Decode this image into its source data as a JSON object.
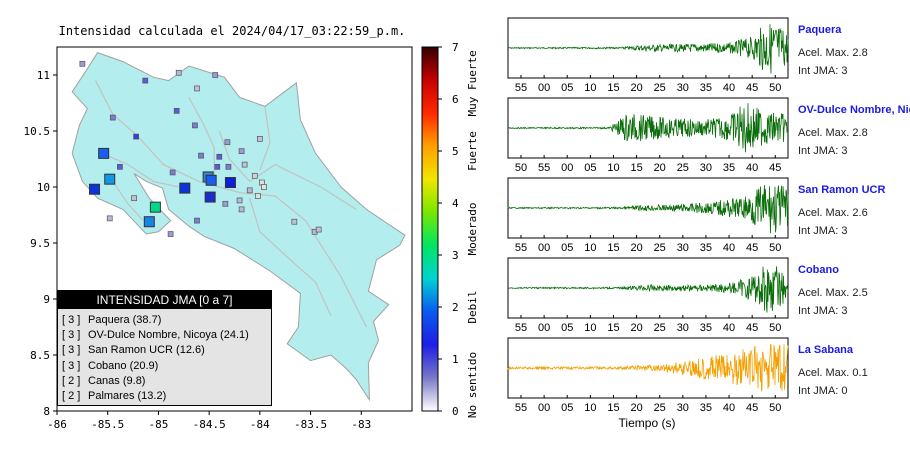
{
  "map": {
    "title": "Intensidad calculada el 2024/04/17_03:22:59_p.m.",
    "lon_range": [
      -86,
      -82.5
    ],
    "lat_range": [
      8,
      11.25
    ],
    "x_ticks": [
      -86,
      -85.5,
      -85,
      -84.5,
      -84,
      -83.5,
      -83
    ],
    "x_tick_labels": [
      "-86",
      "-85.5",
      "-85",
      "-84.5",
      "-84",
      "-83.5",
      "-83"
    ],
    "y_ticks": [
      8,
      8.5,
      9,
      9.5,
      10,
      10.5,
      11
    ],
    "y_tick_labels": [
      "8",
      "8.5",
      "9",
      "9.5",
      "10",
      "10.5",
      "11"
    ],
    "land_color": "#b3eded",
    "border_color": "#a0a0a0",
    "large_markers": [
      {
        "lon": -85.54,
        "lat": 10.3,
        "color": "#1a5ef0"
      },
      {
        "lon": -85.63,
        "lat": 9.98,
        "color": "#0d33d9"
      },
      {
        "lon": -85.48,
        "lat": 10.07,
        "color": "#1097e8"
      },
      {
        "lon": -84.74,
        "lat": 9.99,
        "color": "#0d33d9"
      },
      {
        "lon": -84.51,
        "lat": 10.09,
        "color": "#2a8ad8"
      },
      {
        "lon": -84.48,
        "lat": 10.06,
        "color": "#1a5ef0"
      },
      {
        "lon": -84.29,
        "lat": 10.04,
        "color": "#0d1fd9"
      },
      {
        "lon": -84.49,
        "lat": 9.91,
        "color": "#1a2ecd"
      },
      {
        "lon": -85.03,
        "lat": 9.82,
        "color": "#00d98c"
      },
      {
        "lon": -85.09,
        "lat": 9.69,
        "color": "#1785e6"
      }
    ],
    "small_markers": [
      {
        "lon": -85.75,
        "lat": 11.1,
        "color": "#9a9ad9"
      },
      {
        "lon": -85.13,
        "lat": 10.95,
        "color": "#5a5ae0"
      },
      {
        "lon": -84.8,
        "lat": 11.02,
        "color": "#b8b8d6"
      },
      {
        "lon": -84.44,
        "lat": 11.0,
        "color": "#9a9ad9"
      },
      {
        "lon": -84.62,
        "lat": 10.88,
        "color": "#c0c0d8"
      },
      {
        "lon": -85.45,
        "lat": 10.62,
        "color": "#7a7ad9"
      },
      {
        "lon": -84.82,
        "lat": 10.68,
        "color": "#5a5ae0"
      },
      {
        "lon": -84.64,
        "lat": 10.55,
        "color": "#7a7ad9"
      },
      {
        "lon": -84.32,
        "lat": 10.4,
        "color": "#9a9ad9"
      },
      {
        "lon": -84.0,
        "lat": 10.43,
        "color": "#c0c0d8"
      },
      {
        "lon": -84.18,
        "lat": 10.32,
        "color": "#9a9ad9"
      },
      {
        "lon": -84.4,
        "lat": 10.27,
        "color": "#5a5ae0"
      },
      {
        "lon": -84.58,
        "lat": 10.28,
        "color": "#7a7ad9"
      },
      {
        "lon": -85.22,
        "lat": 10.45,
        "color": "#3a3ae6"
      },
      {
        "lon": -85.38,
        "lat": 10.18,
        "color": "#5a5ae0"
      },
      {
        "lon": -84.86,
        "lat": 10.13,
        "color": "#7a7ad9"
      },
      {
        "lon": -84.15,
        "lat": 10.2,
        "color": "#c0c0d8"
      },
      {
        "lon": -84.05,
        "lat": 10.1,
        "color": "#d0d0d8"
      },
      {
        "lon": -83.98,
        "lat": 10.04,
        "color": "#e0e0e0"
      },
      {
        "lon": -84.1,
        "lat": 9.97,
        "color": "#b8b8d6"
      },
      {
        "lon": -84.2,
        "lat": 9.88,
        "color": "#b8b8d6"
      },
      {
        "lon": -84.02,
        "lat": 9.92,
        "color": "#e0e0e0"
      },
      {
        "lon": -84.18,
        "lat": 9.8,
        "color": "#b8b8d6"
      },
      {
        "lon": -84.34,
        "lat": 9.85,
        "color": "#9a9ad9"
      },
      {
        "lon": -84.62,
        "lat": 9.7,
        "color": "#7a7ad9"
      },
      {
        "lon": -85.48,
        "lat": 9.72,
        "color": "#b8b8d6"
      },
      {
        "lon": -85.24,
        "lat": 9.9,
        "color": "#c0c0d8"
      },
      {
        "lon": -84.88,
        "lat": 9.58,
        "color": "#9a9ad9"
      },
      {
        "lon": -83.46,
        "lat": 9.6,
        "color": "#b8b8d6"
      },
      {
        "lon": -83.42,
        "lat": 9.62,
        "color": "#c0c0d8"
      },
      {
        "lon": -83.66,
        "lat": 9.69,
        "color": "#c0c0d8"
      },
      {
        "lon": -83.96,
        "lat": 10.0,
        "color": "#e0e0e0"
      },
      {
        "lon": -84.31,
        "lat": 10.18,
        "color": "#7a7ad9"
      },
      {
        "lon": -84.42,
        "lat": 10.18,
        "color": "#5a5ae0"
      }
    ]
  },
  "colorbar": {
    "min": 0,
    "max": 7,
    "tick_labels": [
      "0",
      "1",
      "2",
      "3",
      "4",
      "5",
      "6",
      "7"
    ],
    "category_labels": [
      "No sentido",
      "Debil",
      "Moderado",
      "Fuerte",
      "Muy Fuerte"
    ],
    "stops": [
      "#ffffff",
      "#7878c8",
      "#1e1ee6",
      "#0a5af0",
      "#00d2d2",
      "#00e664",
      "#78e600",
      "#f0e600",
      "#ffa000",
      "#ff2800",
      "#c80000",
      "#320000"
    ]
  },
  "legend": {
    "title": "INTENSIDAD JMA [0 a 7]",
    "items": [
      {
        "level": "[ 3 ]",
        "name": "Paquera (38.7)"
      },
      {
        "level": "[ 3 ]",
        "name": "OV-Dulce Nombre, Nicoya (24.1)"
      },
      {
        "level": "[ 3 ]",
        "name": "San Ramon UCR (12.6)"
      },
      {
        "level": "[ 3 ]",
        "name": "Cobano (20.9)"
      },
      {
        "level": "[ 2 ]",
        "name": "Canas (9.8)"
      },
      {
        "level": "[ 2 ]",
        "name": "Palmares (13.2)"
      }
    ]
  },
  "chart_data": [
    {
      "type": "line",
      "title": "Intensidad calculada el 2024/04/17_03:22:59_p.m.",
      "xlabel": "",
      "ylabel": "",
      "xlim": [
        -86,
        -82.5
      ],
      "ylim": [
        8,
        11.25
      ],
      "note_kind": "map"
    },
    {
      "type": "line",
      "name": "Paquera",
      "station": "Paquera",
      "accel_label": "Acel. Max. 2.8",
      "int_label": "Int JMA: 3",
      "color": "#0a6e0a",
      "x_ticks": [
        "55",
        "00",
        "05",
        "10",
        "15",
        "20",
        "25",
        "30",
        "35",
        "40",
        "45",
        "50"
      ],
      "shape": [
        [
          0,
          0.02
        ],
        [
          20,
          0.03
        ],
        [
          25,
          0.12
        ],
        [
          30,
          0.14
        ],
        [
          35,
          0.16
        ],
        [
          40,
          0.2
        ],
        [
          44,
          0.45
        ],
        [
          46,
          0.95
        ],
        [
          48,
          0.9
        ],
        [
          50,
          0.6
        ]
      ]
    },
    {
      "type": "line",
      "name": "OV-Dulce Nombre, Nico",
      "station": "OV-Dulce Nombre, Nico",
      "accel_label": "Acel. Max. 2.8",
      "int_label": "Int JMA: 3",
      "color": "#0a6e0a",
      "x_ticks": [
        "50",
        "55",
        "00",
        "05",
        "10",
        "15",
        "20",
        "25",
        "30",
        "35",
        "40",
        "45"
      ],
      "shape": [
        [
          0,
          0.02
        ],
        [
          17,
          0.03
        ],
        [
          20,
          0.55
        ],
        [
          23,
          0.45
        ],
        [
          28,
          0.35
        ],
        [
          33,
          0.3
        ],
        [
          37,
          0.45
        ],
        [
          40,
          0.95
        ],
        [
          43,
          0.6
        ],
        [
          47,
          0.5
        ]
      ]
    },
    {
      "type": "line",
      "name": "San Ramon UCR",
      "station": "San Ramon UCR",
      "accel_label": "Acel. Max. 2.6",
      "int_label": "Int JMA: 3",
      "color": "#0a6e0a",
      "x_ticks": [
        "55",
        "00",
        "05",
        "10",
        "15",
        "20",
        "25",
        "30",
        "35",
        "40",
        "45",
        "50"
      ],
      "shape": [
        [
          0,
          0.02
        ],
        [
          20,
          0.03
        ],
        [
          24,
          0.1
        ],
        [
          30,
          0.12
        ],
        [
          36,
          0.22
        ],
        [
          42,
          0.4
        ],
        [
          46,
          0.9
        ],
        [
          48,
          0.95
        ],
        [
          50,
          0.7
        ]
      ]
    },
    {
      "type": "line",
      "name": "Cobano",
      "station": "Cobano",
      "accel_label": "Acel. Max. 2.5",
      "int_label": "Int JMA: 3",
      "color": "#0a6e0a",
      "x_ticks": [
        "55",
        "00",
        "05",
        "10",
        "15",
        "20",
        "25",
        "30",
        "35",
        "40",
        "45",
        "50"
      ],
      "shape": [
        [
          0,
          0.02
        ],
        [
          20,
          0.03
        ],
        [
          25,
          0.12
        ],
        [
          30,
          0.1
        ],
        [
          35,
          0.12
        ],
        [
          40,
          0.18
        ],
        [
          44,
          0.5
        ],
        [
          46,
          0.95
        ],
        [
          48,
          0.8
        ],
        [
          50,
          0.5
        ]
      ]
    },
    {
      "type": "line",
      "name": "La Sabana",
      "station": "La Sabana",
      "accel_label": "Acel. Max. 0.1",
      "int_label": "Int JMA: 0",
      "color": "#f5a000",
      "x_ticks": [
        "55",
        "00",
        "05",
        "10",
        "15",
        "20",
        "25",
        "30",
        "35",
        "40",
        "45",
        "50"
      ],
      "shape": [
        [
          0,
          0.04
        ],
        [
          20,
          0.05
        ],
        [
          28,
          0.15
        ],
        [
          32,
          0.3
        ],
        [
          38,
          0.5
        ],
        [
          43,
          0.75
        ],
        [
          47,
          0.95
        ],
        [
          50,
          0.9
        ]
      ]
    }
  ],
  "xaxis_label": "Tiempo (s)"
}
